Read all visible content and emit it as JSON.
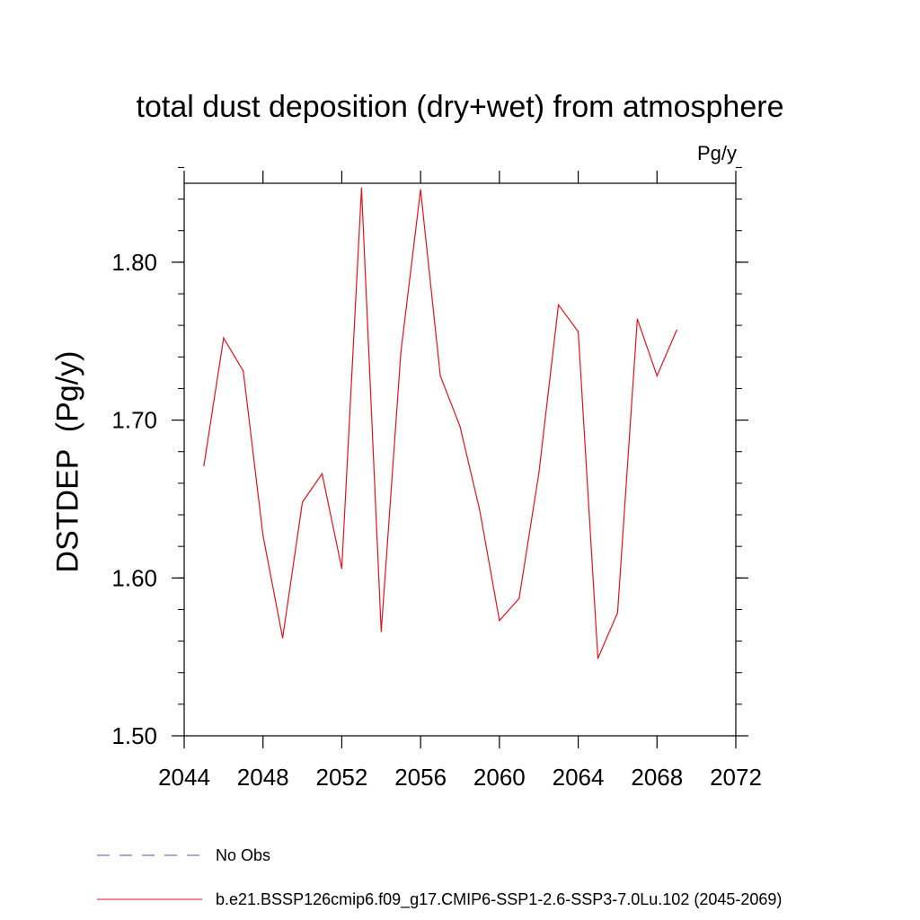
{
  "chart_data": {
    "type": "line",
    "title": "total dust deposition (dry+wet) from atmosphere",
    "units_label": "Pg/y",
    "ylabel": "DSTDEP  (Pg/y)",
    "xlabel": "",
    "xlim": [
      2044,
      2072
    ],
    "ylim": [
      1.5,
      1.85
    ],
    "x_ticks": [
      2044,
      2048,
      2052,
      2056,
      2060,
      2064,
      2068,
      2072
    ],
    "x_tick_labels": [
      "2044",
      "2048",
      "2052",
      "2056",
      "2060",
      "2064",
      "2068",
      "2072"
    ],
    "y_ticks": [
      1.5,
      1.6,
      1.7,
      1.8
    ],
    "y_tick_labels": [
      "1.50",
      "1.60",
      "1.70",
      "1.80"
    ],
    "grid": false,
    "legend_position": "bottom",
    "series": [
      {
        "name": "b.e21.BSSP126cmip6.f09_g17.CMIP6-SSP1-2.6-SSP3-7.0Lu.102 (2045-2069)",
        "color": "#e8101b",
        "style": "solid",
        "x": [
          2045,
          2046,
          2047,
          2048,
          2049,
          2050,
          2051,
          2052,
          2053,
          2054,
          2055,
          2056,
          2057,
          2058,
          2059,
          2060,
          2061,
          2062,
          2063,
          2064,
          2065,
          2066,
          2067,
          2068,
          2069
        ],
        "values": [
          1.671,
          1.752,
          1.731,
          1.627,
          1.562,
          1.648,
          1.666,
          1.606,
          1.847,
          1.566,
          1.743,
          1.846,
          1.728,
          1.696,
          1.643,
          1.573,
          1.587,
          1.666,
          1.773,
          1.756,
          1.549,
          1.578,
          1.764,
          1.728,
          1.757
        ]
      },
      {
        "name": "No Obs",
        "color": "#5a4fa6",
        "style": "dashed",
        "x": [],
        "values": []
      }
    ]
  }
}
